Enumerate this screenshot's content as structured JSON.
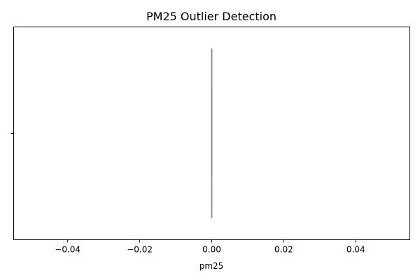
{
  "chart_data": {
    "type": "box",
    "orientation": "horizontal",
    "title": "PM25 Outlier Detection",
    "xlabel": "pm25",
    "ylabel": "",
    "xlim": [
      -0.055,
      0.055
    ],
    "x_ticks": [
      -0.04,
      -0.02,
      0.0,
      0.02,
      0.04
    ],
    "x_tick_labels": [
      "−0.04",
      "−0.02",
      "0.00",
      "0.02",
      "0.04"
    ],
    "y_tick_labels": [
      ""
    ],
    "grid": false,
    "box": {
      "min": 0.0,
      "q1": 0.0,
      "median": 0.0,
      "q3": 0.0,
      "max": 0.0
    },
    "colors": {
      "box_line": "#808080",
      "axes": "#000000"
    }
  }
}
